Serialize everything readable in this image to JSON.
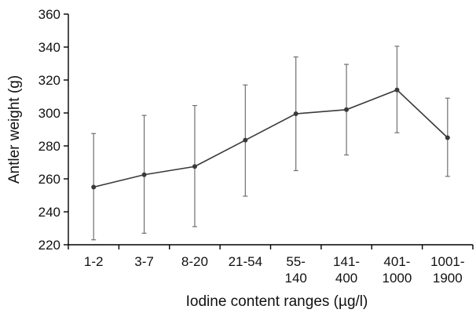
{
  "chart_data": {
    "type": "line",
    "title": "",
    "xlabel": "Iodine content ranges (µg/l)",
    "ylabel": "Antler weight (g)",
    "ylim": [
      220,
      360
    ],
    "yticks": [
      220,
      240,
      260,
      280,
      300,
      320,
      340,
      360
    ],
    "grid": false,
    "legend": "none",
    "categories": [
      [
        "1-2"
      ],
      [
        "3-7"
      ],
      [
        "8-20"
      ],
      [
        "21-54"
      ],
      [
        "55-",
        "140"
      ],
      [
        "141-",
        "400"
      ],
      [
        "401-",
        "1000"
      ],
      [
        "1001-",
        "1900"
      ]
    ],
    "series": [
      {
        "values": [
          255,
          262.5,
          267.5,
          283.5,
          299.5,
          302,
          314,
          285
        ],
        "error_low": [
          223,
          227,
          231,
          249.5,
          265,
          274.5,
          288,
          261.5
        ],
        "error_high": [
          287.5,
          298.5,
          304.5,
          317,
          334,
          329.5,
          340.5,
          309
        ]
      }
    ],
    "colors": {
      "line": "#3a3a3a",
      "error_bars": "#707070",
      "axes": "#000000"
    }
  }
}
